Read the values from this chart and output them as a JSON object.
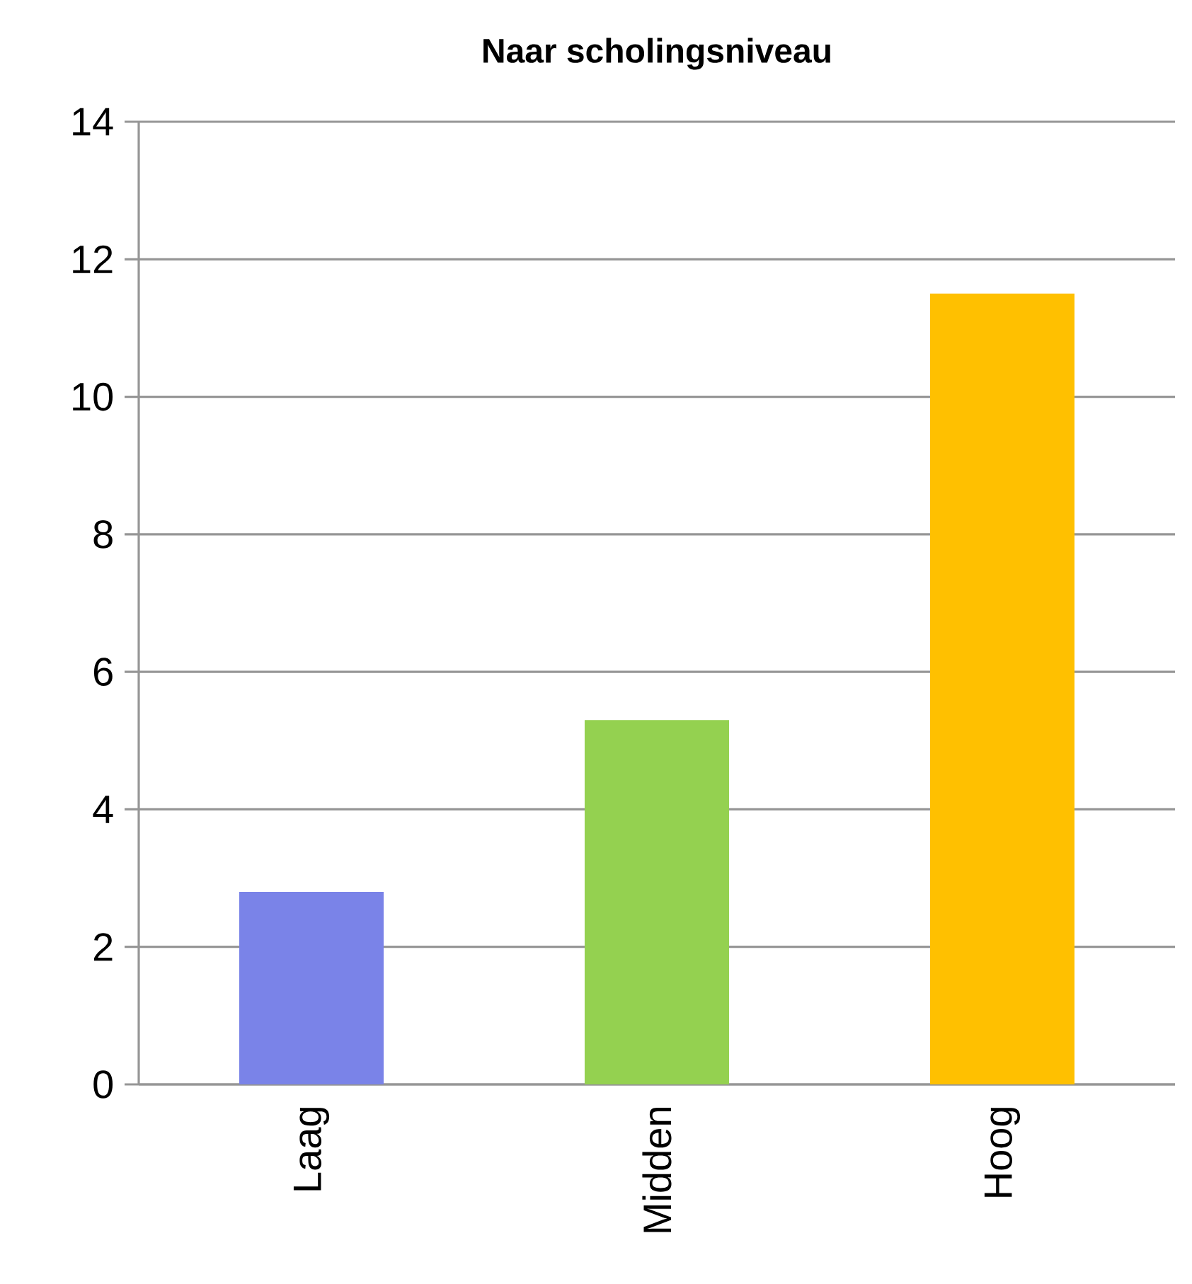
{
  "chart_data": {
    "type": "bar",
    "title": "Naar scholingsniveau",
    "categories": [
      "Laag",
      "Midden",
      "Hoog"
    ],
    "values": [
      2.8,
      5.3,
      11.5
    ],
    "colors": [
      "#7a83e8",
      "#94d150",
      "#ffc000"
    ],
    "ylim": [
      0,
      14
    ],
    "yticks": [
      0,
      2,
      4,
      6,
      8,
      10,
      12,
      14
    ],
    "grid": "y"
  }
}
